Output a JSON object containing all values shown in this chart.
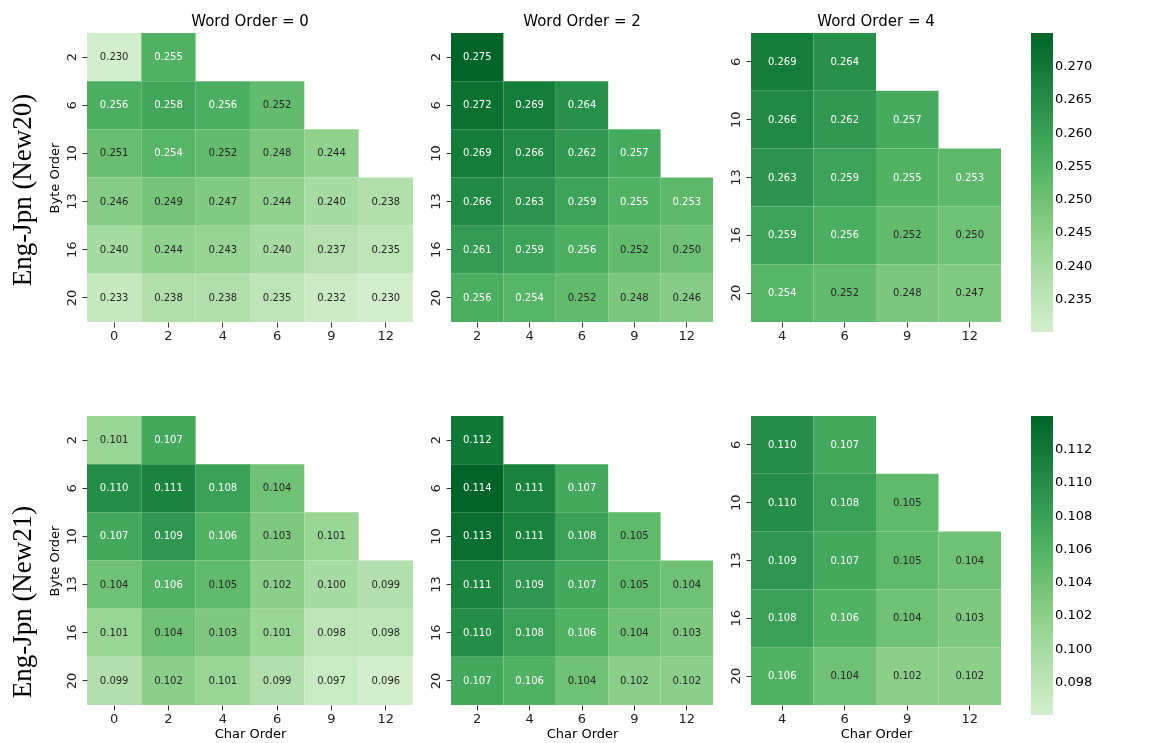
{
  "chart_data": [
    {
      "type": "heatmap",
      "title": "Word Order = 0",
      "ylabel": "Byte Order",
      "annotations": [
        "Eng-Jpn (New20)"
      ],
      "categories": [
        "0",
        "2",
        "4",
        "6",
        "9",
        "12"
      ],
      "y_categories": [
        "2",
        "6",
        "10",
        "13",
        "16",
        "20"
      ],
      "data_labels": true,
      "cells": [
        [
          0.23,
          0.255,
          null,
          null,
          null,
          null
        ],
        [
          0.256,
          0.258,
          0.256,
          0.252,
          null,
          null
        ],
        [
          0.251,
          0.254,
          0.252,
          0.248,
          0.244,
          null
        ],
        [
          0.246,
          0.249,
          0.247,
          0.244,
          0.24,
          0.238
        ],
        [
          0.24,
          0.244,
          0.243,
          0.24,
          0.237,
          0.235
        ],
        [
          0.233,
          0.238,
          0.238,
          0.235,
          0.232,
          0.23
        ]
      ],
      "cell_labels": [
        [
          "0.230",
          "0.255",
          null,
          null,
          null,
          null
        ],
        [
          "0.256",
          "0.258",
          "0.256",
          "0.252",
          null,
          null
        ],
        [
          "0.251",
          "0.254",
          "0.252",
          "0.248",
          "0.244",
          null
        ],
        [
          "0.246",
          "0.249",
          "0.247",
          "0.244",
          "0.240",
          "0.238"
        ],
        [
          "0.240",
          "0.244",
          "0.243",
          "0.240",
          "0.237",
          "0.235"
        ],
        [
          "0.233",
          "0.238",
          "0.238",
          "0.235",
          "0.232",
          "0.230"
        ]
      ]
    },
    {
      "type": "heatmap",
      "title": "Word Order = 2",
      "categories": [
        "2",
        "4",
        "6",
        "9",
        "12"
      ],
      "y_categories": [
        "2",
        "6",
        "10",
        "13",
        "16",
        "20"
      ],
      "data_labels": true,
      "cells": [
        [
          0.275,
          null,
          null,
          null,
          null
        ],
        [
          0.272,
          0.269,
          0.264,
          null,
          null
        ],
        [
          0.269,
          0.266,
          0.262,
          0.257,
          null
        ],
        [
          0.266,
          0.263,
          0.259,
          0.255,
          0.253
        ],
        [
          0.261,
          0.259,
          0.256,
          0.252,
          0.25
        ],
        [
          0.256,
          0.254,
          0.252,
          0.248,
          0.246
        ]
      ],
      "cell_labels": [
        [
          "0.275",
          null,
          null,
          null,
          null
        ],
        [
          "0.272",
          "0.269",
          "0.264",
          null,
          null
        ],
        [
          "0.269",
          "0.266",
          "0.262",
          "0.257",
          null
        ],
        [
          "0.266",
          "0.263",
          "0.259",
          "0.255",
          "0.253"
        ],
        [
          "0.261",
          "0.259",
          "0.256",
          "0.252",
          "0.250"
        ],
        [
          "0.256",
          "0.254",
          "0.252",
          "0.248",
          "0.246"
        ]
      ]
    },
    {
      "type": "heatmap",
      "title": "Word Order = 4",
      "categories": [
        "4",
        "6",
        "9",
        "12"
      ],
      "y_categories": [
        "6",
        "10",
        "13",
        "16",
        "20"
      ],
      "clim": [
        0.23,
        0.275
      ],
      "data_labels": true,
      "cticks": [
        0.235,
        {
          "value": 0.24,
          "label": "0.240"
        },
        0.245,
        {
          "value": 0.25,
          "label": "0.250"
        },
        0.255,
        {
          "value": 0.26,
          "label": "0.260"
        },
        0.265,
        {
          "value": 0.27,
          "label": "0.270"
        }
      ],
      "cells": [
        [
          0.269,
          0.264,
          null,
          null
        ],
        [
          0.266,
          0.262,
          0.257,
          null
        ],
        [
          0.263,
          0.259,
          0.255,
          0.253
        ],
        [
          0.259,
          0.256,
          0.252,
          0.25
        ],
        [
          0.254,
          0.252,
          0.248,
          0.247
        ]
      ],
      "cell_labels": [
        [
          "0.269",
          "0.264",
          null,
          null
        ],
        [
          "0.266",
          "0.262",
          "0.257",
          null
        ],
        [
          "0.263",
          "0.259",
          "0.255",
          "0.253"
        ],
        [
          "0.259",
          "0.256",
          "0.252",
          "0.250"
        ],
        [
          "0.254",
          "0.252",
          "0.248",
          "0.247"
        ]
      ]
    },
    {
      "type": "heatmap",
      "xlabel": "Char Order",
      "ylabel": "Byte Order",
      "annotations": [
        "Eng-Jpn (New21)"
      ],
      "categories": [
        "0",
        "2",
        "4",
        "6",
        "9",
        "12"
      ],
      "y_categories": [
        "2",
        "6",
        "10",
        "13",
        "16",
        "20"
      ],
      "data_labels": true,
      "cells": [
        [
          0.101,
          0.107,
          null,
          null,
          null,
          null
        ],
        [
          0.11,
          0.111,
          0.108,
          0.104,
          null,
          null
        ],
        [
          0.107,
          0.109,
          0.106,
          0.103,
          0.101,
          null
        ],
        [
          0.104,
          0.106,
          0.105,
          0.102,
          0.1,
          0.099
        ],
        [
          0.101,
          0.104,
          0.103,
          0.101,
          0.098,
          0.098
        ],
        [
          0.099,
          0.102,
          0.101,
          0.099,
          0.097,
          0.096
        ]
      ],
      "cell_labels": [
        [
          "0.101",
          "0.107",
          null,
          null,
          null,
          null
        ],
        [
          "0.110",
          "0.111",
          "0.108",
          "0.104",
          null,
          null
        ],
        [
          "0.107",
          "0.109",
          "0.106",
          "0.103",
          "0.101",
          null
        ],
        [
          "0.104",
          "0.106",
          "0.105",
          "0.102",
          "0.100",
          "0.099"
        ],
        [
          "0.101",
          "0.104",
          "0.103",
          "0.101",
          "0.098",
          "0.098"
        ],
        [
          "0.099",
          "0.102",
          "0.101",
          "0.099",
          "0.097",
          "0.096"
        ]
      ]
    },
    {
      "type": "heatmap",
      "xlabel": "Char Order",
      "categories": [
        "2",
        "4",
        "6",
        "9",
        "12"
      ],
      "y_categories": [
        "2",
        "6",
        "10",
        "13",
        "16",
        "20"
      ],
      "data_labels": true,
      "cells": [
        [
          0.112,
          null,
          null,
          null,
          null
        ],
        [
          0.114,
          0.111,
          0.107,
          null,
          null
        ],
        [
          0.113,
          0.111,
          0.108,
          0.105,
          null
        ],
        [
          0.111,
          0.109,
          0.107,
          0.105,
          0.104
        ],
        [
          0.11,
          0.108,
          0.106,
          0.104,
          0.103
        ],
        [
          0.107,
          0.106,
          0.104,
          0.102,
          0.102
        ]
      ],
      "cell_labels": [
        [
          "0.112",
          null,
          null,
          null,
          null
        ],
        [
          "0.114",
          "0.111",
          "0.107",
          null,
          null
        ],
        [
          "0.113",
          "0.111",
          "0.108",
          "0.105",
          null
        ],
        [
          "0.111",
          "0.109",
          "0.107",
          "0.105",
          "0.104"
        ],
        [
          "0.110",
          "0.108",
          "0.106",
          "0.104",
          "0.103"
        ],
        [
          "0.107",
          "0.106",
          "0.104",
          "0.102",
          "0.102"
        ]
      ]
    },
    {
      "type": "heatmap",
      "xlabel": "Char Order",
      "categories": [
        "4",
        "6",
        "9",
        "12"
      ],
      "y_categories": [
        "6",
        "10",
        "13",
        "16",
        "20"
      ],
      "clim": [
        0.096,
        0.114
      ],
      "data_labels": true,
      "cticks": [
        0.098,
        {
          "value": 0.1,
          "label": "0.100"
        },
        0.102,
        0.104,
        0.106,
        0.108,
        {
          "value": 0.11,
          "label": "0.110"
        },
        0.112
      ],
      "cells": [
        [
          0.11,
          0.107,
          null,
          null
        ],
        [
          0.11,
          0.108,
          0.105,
          null
        ],
        [
          0.109,
          0.107,
          0.105,
          0.104
        ],
        [
          0.108,
          0.106,
          0.104,
          0.103
        ],
        [
          0.106,
          0.104,
          0.102,
          0.102
        ]
      ],
      "cell_labels": [
        [
          "0.110",
          "0.107",
          null,
          null
        ],
        [
          "0.110",
          "0.108",
          "0.105",
          null
        ],
        [
          "0.109",
          "0.107",
          "0.105",
          "0.104"
        ],
        [
          "0.108",
          "0.106",
          "0.104",
          "0.103"
        ],
        [
          "0.106",
          "0.104",
          "0.102",
          "0.102"
        ]
      ]
    }
  ]
}
